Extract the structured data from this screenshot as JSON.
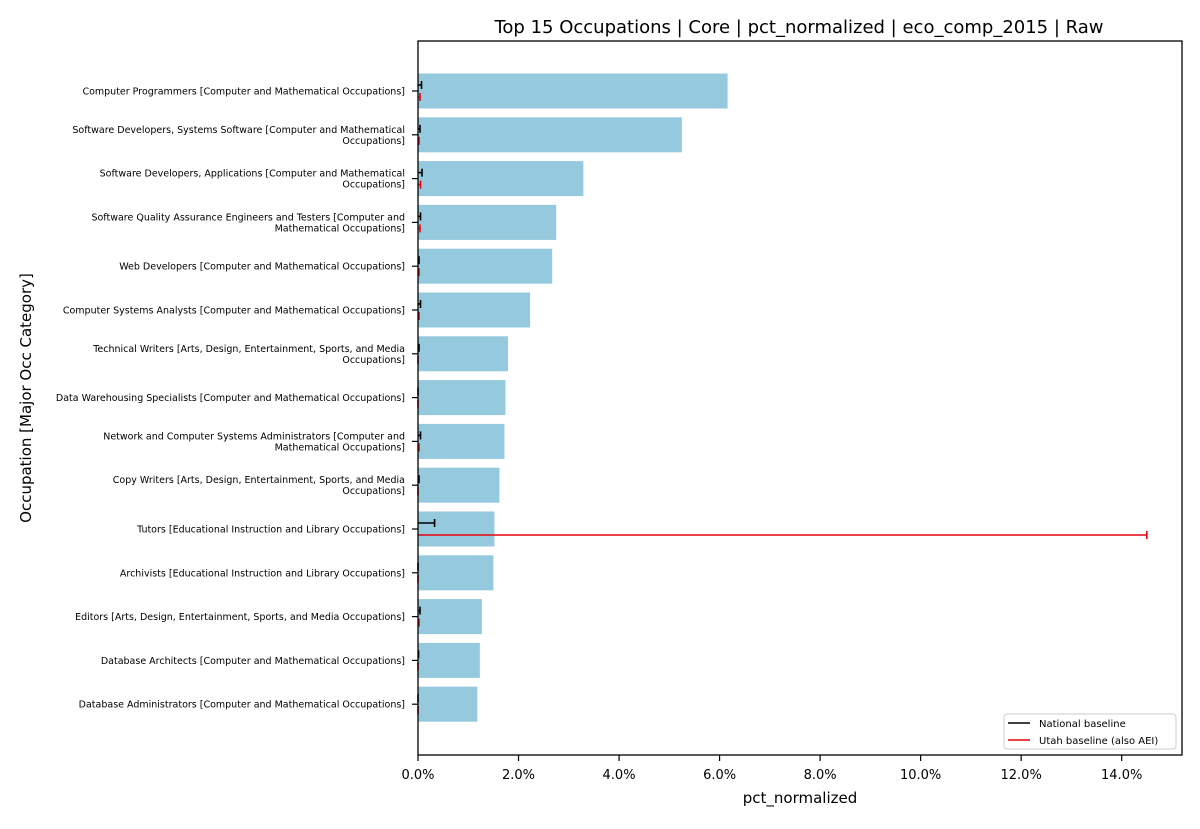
{
  "chart_data": {
    "type": "bar",
    "orientation": "horizontal",
    "title": "Top 15 Occupations | Core | pct_normalized | eco_comp_2015 | Raw",
    "xlabel": "pct_normalized",
    "ylabel": "Occupation [Major Occ Category]",
    "xlim": [
      0,
      15.2
    ],
    "x_ticks": [
      0,
      2,
      4,
      6,
      8,
      10,
      12,
      14
    ],
    "x_tick_labels": [
      "0.0%",
      "2.0%",
      "4.0%",
      "6.0%",
      "8.0%",
      "10.0%",
      "12.0%",
      "14.0%"
    ],
    "grid": false,
    "legend_position": "bottom-right",
    "colors": {
      "bar": "#95c9de",
      "national": "#000000",
      "utah": "#e8000b"
    },
    "legend": [
      {
        "label": "National baseline",
        "color": "#000000"
      },
      {
        "label": "Utah baseline (also AEI)",
        "color": "#e8000b"
      }
    ],
    "categories": [
      [
        "Computer Programmers  [Computer and Mathematical Occupations]"
      ],
      [
        "Software Developers, Systems Software  [Computer and Mathematical",
        "Occupations]"
      ],
      [
        "Software Developers, Applications  [Computer and Mathematical",
        "Occupations]"
      ],
      [
        "Software Quality Assurance Engineers and Testers  [Computer and",
        "Mathematical Occupations]"
      ],
      [
        "Web Developers  [Computer and Mathematical Occupations]"
      ],
      [
        "Computer Systems Analysts  [Computer and Mathematical Occupations]"
      ],
      [
        "Technical Writers  [Arts, Design, Entertainment, Sports, and Media",
        "Occupations]"
      ],
      [
        "Data Warehousing Specialists  [Computer and Mathematical Occupations]"
      ],
      [
        "Network and Computer Systems Administrators  [Computer and",
        "Mathematical Occupations]"
      ],
      [
        "Copy Writers  [Arts, Design, Entertainment, Sports, and Media",
        "Occupations]"
      ],
      [
        "Tutors  [Educational Instruction and Library Occupations]"
      ],
      [
        "Archivists  [Educational Instruction and Library Occupations]"
      ],
      [
        "Editors  [Arts, Design, Entertainment, Sports, and Media Occupations]"
      ],
      [
        "Database Architects  [Computer and Mathematical Occupations]"
      ],
      [
        "Database Administrators  [Computer and Mathematical Occupations]"
      ]
    ],
    "values": [
      6.16,
      5.25,
      3.29,
      2.75,
      2.67,
      2.23,
      1.79,
      1.74,
      1.72,
      1.62,
      1.52,
      1.5,
      1.27,
      1.23,
      1.18
    ],
    "series": [
      {
        "name": "National baseline",
        "values": [
          0.07,
          0.04,
          0.08,
          0.05,
          0.02,
          0.05,
          0.02,
          0.0,
          0.05,
          0.02,
          0.33,
          0.0,
          0.04,
          0.01,
          0.0
        ]
      },
      {
        "name": "Utah baseline (also AEI)",
        "values": [
          0.04,
          0.02,
          0.05,
          0.04,
          0.02,
          0.02,
          0.0,
          0.0,
          0.02,
          0.0,
          14.5,
          0.0,
          0.02,
          0.0,
          0.0
        ]
      }
    ]
  }
}
